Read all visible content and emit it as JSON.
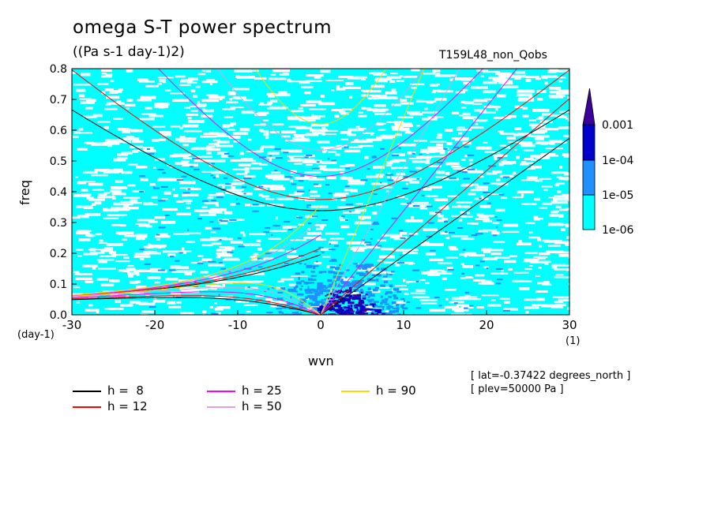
{
  "header": {
    "title": "omega S-T power spectrum",
    "subtitle": "((Pa s-1 day-1)2)",
    "run_name": "T159L48_non_Qobs"
  },
  "meta": {
    "lat": "[ lat=-0.37422 degrees_north ]",
    "plev": "[ plev=50000 Pa ]"
  },
  "chart_data": {
    "type": "heatmap",
    "title": "omega S-T power spectrum",
    "units": "((Pa s-1 day-1)2)",
    "xlabel": "wvn",
    "ylabel": "freq",
    "x_unit": "(1)",
    "y_unit": "(day-1)",
    "xlim": [
      -30,
      30
    ],
    "ylim": [
      0,
      0.8
    ],
    "x_ticks": [
      -30,
      -20,
      -10,
      0,
      10,
      20,
      30
    ],
    "x_tick_labels": [
      "-30",
      "-20",
      "-10",
      "0",
      "10",
      "20",
      "30"
    ],
    "y_ticks": [
      0,
      0.1,
      0.2,
      0.3,
      0.4,
      0.5,
      0.6,
      0.7,
      0.8
    ],
    "y_tick_labels": [
      "0.0",
      "0.1",
      "0.2",
      "0.3",
      "0.4",
      "0.5",
      "0.6",
      "0.7",
      "0.8"
    ],
    "colorbar": {
      "labels": [
        "0.001",
        "1e-04",
        "1e-05",
        "1e-06"
      ],
      "levels": [
        1e-06,
        1e-05,
        0.0001,
        0.001
      ],
      "colors": [
        "#00ffff",
        "#1e90ff",
        "#0000cd",
        "#3a0099"
      ]
    },
    "background_level": "1e-06",
    "dispersion_curves": [
      {
        "name": "h =  8",
        "equivalent_depth": 8,
        "color": "#000000"
      },
      {
        "name": "h = 12",
        "equivalent_depth": 12,
        "color": "#ff0000"
      },
      {
        "name": "h = 25",
        "equivalent_depth": 25,
        "color": "#ff00ff"
      },
      {
        "name": "h = 50",
        "equivalent_depth": 50,
        "color": "#dda0dd"
      },
      {
        "name": "h = 90",
        "equivalent_depth": 90,
        "color": "#ffd700"
      }
    ],
    "grid": false,
    "legend_position": "bottom-left"
  }
}
